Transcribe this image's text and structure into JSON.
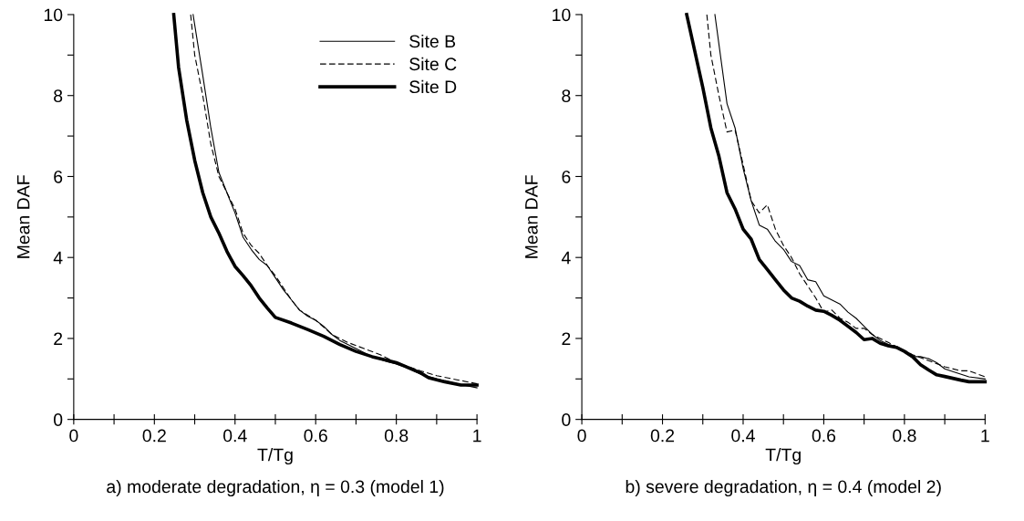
{
  "chart_data": [
    {
      "type": "line",
      "title": "a) moderate degradation, η = 0.3 (model 1)",
      "xlabel": "T/Tg",
      "ylabel": "Mean DAF",
      "xlim": [
        0,
        1
      ],
      "ylim": [
        0,
        10
      ],
      "xticks": [
        0,
        {
          "value": 0.1,
          "label": null
        },
        0.2,
        {
          "value": 0.3,
          "label": null
        },
        0.4,
        {
          "value": 0.5,
          "label": null
        },
        0.6,
        {
          "value": 0.7,
          "label": null
        },
        0.8,
        {
          "value": 0.9,
          "label": null
        },
        1
      ],
      "yticks": [
        0,
        {
          "value": 1,
          "label": null
        },
        2,
        {
          "value": 3,
          "label": null
        },
        4,
        {
          "value": 5,
          "label": null
        },
        6,
        {
          "value": 7,
          "label": null
        },
        8,
        {
          "value": 9,
          "label": null
        },
        10
      ],
      "grid": false,
      "legend": "top right",
      "marker": "none",
      "series": [
        {
          "name": "Site B",
          "color": "#000000",
          "line_style": "solid",
          "x": [
            0.296,
            0.32,
            0.34,
            0.36,
            0.38,
            0.4,
            0.42,
            0.44,
            0.46,
            0.48,
            0.5,
            0.52,
            0.54,
            0.56,
            0.58,
            0.6,
            0.62,
            0.64,
            0.66,
            0.7,
            0.74,
            0.78,
            0.8,
            0.82,
            0.86,
            0.9,
            0.95,
            1.0
          ],
          "values": [
            10,
            8.5,
            7.2,
            6.1,
            5.6,
            5.1,
            4.5,
            4.2,
            3.95,
            3.8,
            3.5,
            3.2,
            2.95,
            2.7,
            2.55,
            2.45,
            2.3,
            2.1,
            1.95,
            1.75,
            1.55,
            1.42,
            1.37,
            1.3,
            1.12,
            1.0,
            0.88,
            0.78
          ]
        },
        {
          "name": "Site C",
          "color": "#000000",
          "line_style": "dashed",
          "x": [
            0.29,
            0.3,
            0.32,
            0.34,
            0.36,
            0.38,
            0.4,
            0.42,
            0.44,
            0.46,
            0.48,
            0.5,
            0.52,
            0.54,
            0.56,
            0.6,
            0.64,
            0.68,
            0.72,
            0.76,
            0.8,
            0.86,
            0.9,
            0.95,
            1.0
          ],
          "values": [
            10,
            9.0,
            8.0,
            6.8,
            6.0,
            5.6,
            5.2,
            4.6,
            4.3,
            4.1,
            3.8,
            3.55,
            3.25,
            2.95,
            2.7,
            2.45,
            2.1,
            1.9,
            1.75,
            1.6,
            1.4,
            1.2,
            1.08,
            0.98,
            0.88
          ]
        },
        {
          "name": "Site D",
          "color": "#000000",
          "line_style": "solid",
          "x": [
            0.248,
            0.26,
            0.28,
            0.3,
            0.32,
            0.34,
            0.36,
            0.38,
            0.4,
            0.42,
            0.44,
            0.46,
            0.48,
            0.5,
            0.54,
            0.58,
            0.62,
            0.66,
            0.7,
            0.74,
            0.78,
            0.8,
            0.82,
            0.86,
            0.88,
            0.92,
            0.96,
            1.0
          ],
          "values": [
            10,
            8.7,
            7.4,
            6.4,
            5.6,
            5.0,
            4.6,
            4.15,
            3.78,
            3.55,
            3.3,
            3.0,
            2.75,
            2.52,
            2.38,
            2.22,
            2.05,
            1.85,
            1.68,
            1.55,
            1.45,
            1.4,
            1.32,
            1.15,
            1.03,
            0.93,
            0.85,
            0.85
          ]
        }
      ]
    },
    {
      "type": "line",
      "title": "b) severe degradation, η = 0.4 (model 2)",
      "xlabel": "T/Tg",
      "ylabel": "Mean DAF",
      "xlim": [
        0,
        1
      ],
      "ylim": [
        0,
        10
      ],
      "xticks": [
        0,
        {
          "value": 0.1,
          "label": null
        },
        0.2,
        {
          "value": 0.3,
          "label": null
        },
        0.4,
        {
          "value": 0.5,
          "label": null
        },
        0.6,
        {
          "value": 0.7,
          "label": null
        },
        0.8,
        {
          "value": 0.9,
          "label": null
        },
        1
      ],
      "yticks": [
        0,
        {
          "value": 1,
          "label": null
        },
        2,
        {
          "value": 3,
          "label": null
        },
        4,
        {
          "value": 5,
          "label": null
        },
        6,
        {
          "value": 7,
          "label": null
        },
        8,
        {
          "value": 9,
          "label": null
        },
        10
      ],
      "grid": false,
      "marker": "none",
      "series": [
        {
          "color": "#000000",
          "line_style": "solid",
          "x": [
            0.33,
            0.36,
            0.38,
            0.4,
            0.42,
            0.44,
            0.46,
            0.48,
            0.5,
            0.52,
            0.54,
            0.56,
            0.58,
            0.6,
            0.62,
            0.64,
            0.66,
            0.68,
            0.7,
            0.72,
            0.74,
            0.76,
            0.78,
            0.8,
            0.82,
            0.84,
            0.86,
            0.88,
            0.9,
            0.92,
            0.96,
            1.0
          ],
          "values": [
            10,
            7.8,
            7.2,
            6.2,
            5.4,
            4.8,
            4.7,
            4.4,
            4.2,
            3.9,
            3.8,
            3.45,
            3.4,
            3.05,
            2.95,
            2.85,
            2.65,
            2.5,
            2.3,
            2.1,
            1.95,
            1.85,
            1.8,
            1.7,
            1.55,
            1.55,
            1.5,
            1.4,
            1.25,
            1.18,
            1.05,
            1.0
          ]
        },
        {
          "color": "#000000",
          "line_style": "dashed",
          "x": [
            0.31,
            0.32,
            0.34,
            0.36,
            0.38,
            0.4,
            0.42,
            0.44,
            0.46,
            0.48,
            0.5,
            0.52,
            0.54,
            0.56,
            0.58,
            0.6,
            0.62,
            0.64,
            0.66,
            0.68,
            0.7,
            0.72,
            0.76,
            0.8,
            0.82,
            0.86,
            0.9,
            0.94,
            0.96,
            1.0
          ],
          "values": [
            10,
            9.0,
            8.0,
            7.1,
            7.15,
            6.3,
            5.4,
            5.1,
            5.3,
            4.7,
            4.3,
            4.0,
            3.6,
            3.3,
            3.0,
            2.65,
            2.7,
            2.5,
            2.4,
            2.25,
            2.25,
            2.1,
            1.9,
            1.7,
            1.6,
            1.45,
            1.3,
            1.2,
            1.2,
            1.05
          ]
        },
        {
          "color": "#000000",
          "line_style": "solid",
          "x": [
            0.26,
            0.28,
            0.3,
            0.32,
            0.34,
            0.36,
            0.38,
            0.4,
            0.42,
            0.44,
            0.46,
            0.48,
            0.5,
            0.52,
            0.54,
            0.56,
            0.58,
            0.6,
            0.62,
            0.64,
            0.66,
            0.68,
            0.7,
            0.72,
            0.74,
            0.76,
            0.78,
            0.8,
            0.82,
            0.84,
            0.86,
            0.88,
            0.9,
            0.94,
            0.96,
            1.0
          ],
          "values": [
            10,
            9.1,
            8.2,
            7.2,
            6.5,
            5.6,
            5.2,
            4.7,
            4.45,
            3.95,
            3.7,
            3.45,
            3.2,
            3.0,
            2.92,
            2.8,
            2.7,
            2.67,
            2.57,
            2.45,
            2.3,
            2.15,
            1.97,
            2.0,
            1.88,
            1.82,
            1.78,
            1.68,
            1.55,
            1.35,
            1.22,
            1.1,
            1.06,
            0.97,
            0.93,
            0.93
          ]
        }
      ]
    }
  ]
}
